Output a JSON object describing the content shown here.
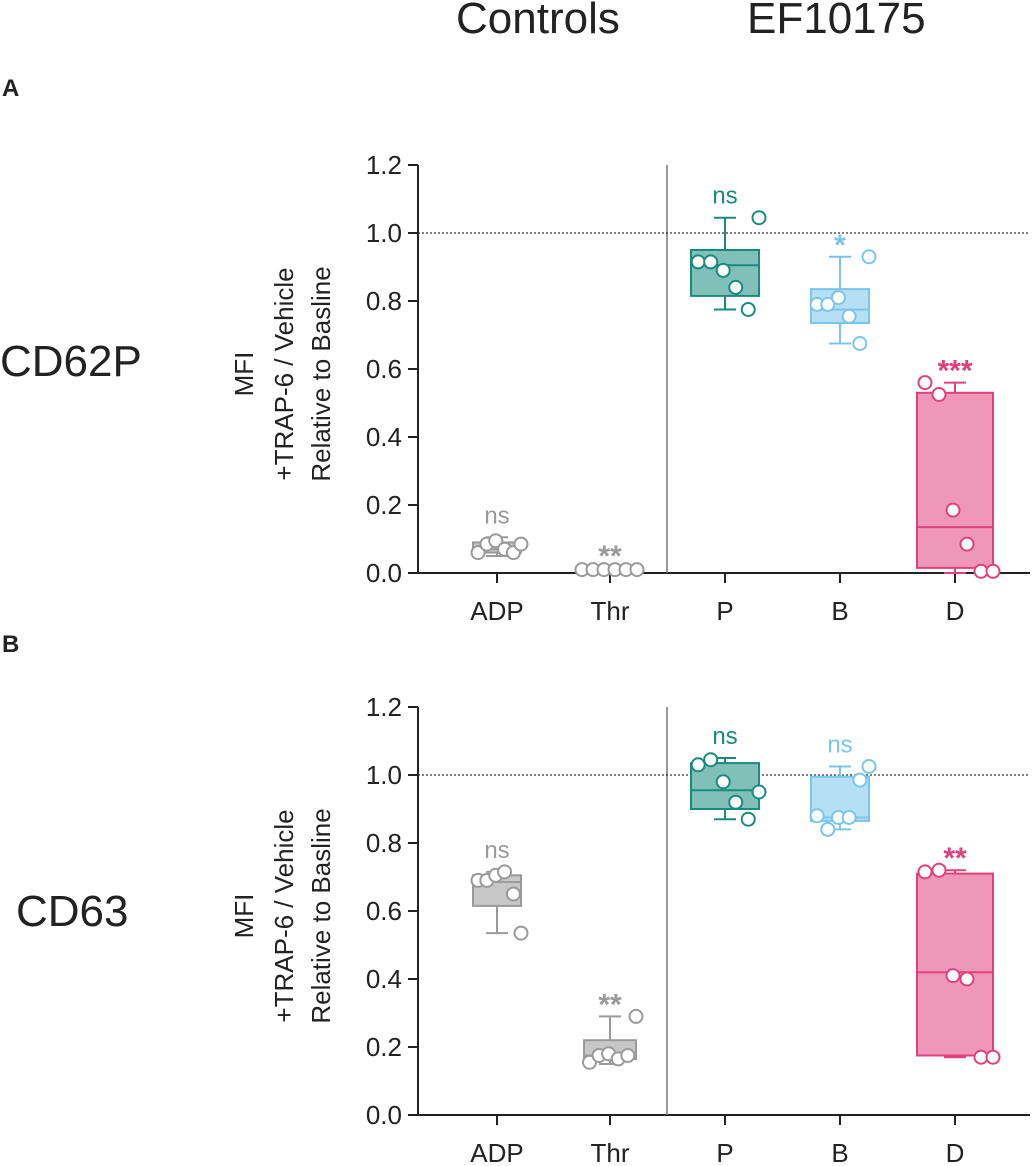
{
  "header": {
    "controls_label": "Controls",
    "compound_label": "EF10175"
  },
  "chart_data": [
    {
      "type": "box",
      "panel_letter": "A",
      "marker": "CD62P",
      "ylabel": [
        "MFI",
        "+TRAP-6 / Vehicle",
        "Relative to Basline"
      ],
      "ylim": [
        0,
        1.2
      ],
      "yticks": [
        "0.0",
        "0.2",
        "0.4",
        "0.6",
        "0.8",
        "1.0",
        "1.2"
      ],
      "reference_line": 1.0,
      "groups": [
        {
          "label": "ADP",
          "color": "#9a9a9a",
          "q1": 0.06,
          "median": 0.07,
          "q3": 0.09,
          "min": 0.05,
          "max": 0.105,
          "points": [
            0.06,
            0.085,
            0.095,
            0.07,
            0.06,
            0.085
          ],
          "sig": "ns"
        },
        {
          "label": "Thr",
          "color": "#9a9a9a",
          "q1": 0.005,
          "median": 0.008,
          "q3": 0.012,
          "min": 0.003,
          "max": 0.014,
          "points": [
            0.01,
            0.01,
            0.01,
            0.01,
            0.01,
            0.01
          ],
          "sig": "**"
        },
        {
          "label": "P",
          "color": "#1a8a80",
          "q1": 0.815,
          "median": 0.905,
          "q3": 0.95,
          "min": 0.775,
          "max": 1.045,
          "points": [
            0.915,
            0.915,
            0.89,
            0.84,
            0.775,
            1.045
          ],
          "sig": "ns"
        },
        {
          "label": "B",
          "color": "#79c6ea",
          "q1": 0.735,
          "median": 0.775,
          "q3": 0.835,
          "min": 0.675,
          "max": 0.93,
          "points": [
            0.79,
            0.79,
            0.81,
            0.755,
            0.675,
            0.93
          ],
          "sig": "*"
        },
        {
          "label": "D",
          "color": "#e0417e",
          "q1": 0.015,
          "median": 0.135,
          "q3": 0.53,
          "min": 0.0,
          "max": 0.56,
          "points": [
            0.56,
            0.525,
            0.185,
            0.085,
            0.005,
            0.005
          ],
          "sig": "***"
        }
      ]
    },
    {
      "type": "box",
      "panel_letter": "B",
      "marker": "CD63",
      "ylabel": [
        "MFI",
        "+TRAP-6 / Vehicle",
        "Relative to Basline"
      ],
      "ylim": [
        0,
        1.2
      ],
      "yticks": [
        "0.0",
        "0.2",
        "0.4",
        "0.6",
        "0.8",
        "1.0",
        "1.2"
      ],
      "reference_line": 1.0,
      "groups": [
        {
          "label": "ADP",
          "color": "#9a9a9a",
          "q1": 0.615,
          "median": 0.685,
          "q3": 0.705,
          "min": 0.535,
          "max": 0.715,
          "points": [
            0.69,
            0.69,
            0.705,
            0.715,
            0.65,
            0.535
          ],
          "sig": "ns"
        },
        {
          "label": "Thr",
          "color": "#9a9a9a",
          "q1": 0.165,
          "median": 0.175,
          "q3": 0.22,
          "min": 0.15,
          "max": 0.29,
          "points": [
            0.155,
            0.175,
            0.18,
            0.165,
            0.175,
            0.29
          ],
          "sig": "**"
        },
        {
          "label": "P",
          "color": "#1a8a80",
          "q1": 0.9,
          "median": 0.955,
          "q3": 1.035,
          "min": 0.87,
          "max": 1.05,
          "points": [
            1.03,
            1.045,
            0.98,
            0.92,
            0.87,
            0.95
          ],
          "sig": "ns"
        },
        {
          "label": "B",
          "color": "#79c6ea",
          "q1": 0.865,
          "median": 0.875,
          "q3": 0.995,
          "min": 0.84,
          "max": 1.025,
          "points": [
            0.88,
            0.84,
            0.875,
            0.875,
            0.985,
            1.025
          ],
          "sig": "ns"
        },
        {
          "label": "D",
          "color": "#e0417e",
          "q1": 0.175,
          "median": 0.42,
          "q3": 0.71,
          "min": 0.17,
          "max": 0.72,
          "points": [
            0.715,
            0.72,
            0.41,
            0.4,
            0.17,
            0.17
          ],
          "sig": "**"
        }
      ]
    }
  ]
}
